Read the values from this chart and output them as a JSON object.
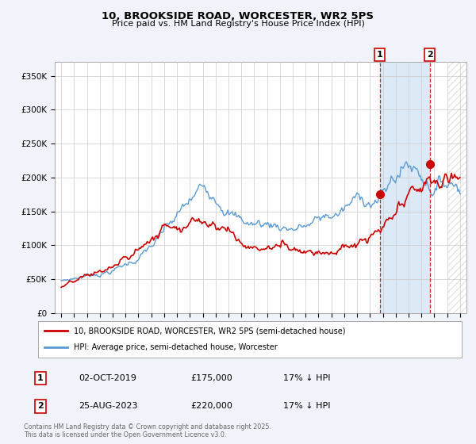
{
  "title": "10, BROOKSIDE ROAD, WORCESTER, WR2 5PS",
  "subtitle": "Price paid vs. HM Land Registry's House Price Index (HPI)",
  "ylim": [
    0,
    370000
  ],
  "yticks": [
    0,
    50000,
    100000,
    150000,
    200000,
    250000,
    300000,
    350000
  ],
  "ytick_labels": [
    "£0",
    "£50K",
    "£100K",
    "£150K",
    "£200K",
    "£250K",
    "£300K",
    "£350K"
  ],
  "hpi_color": "#5b9bd5",
  "price_color": "#cc0000",
  "annotation1_date": "02-OCT-2019",
  "annotation1_price": "£175,000",
  "annotation1_hpi": "17% ↓ HPI",
  "annotation2_date": "25-AUG-2023",
  "annotation2_price": "£220,000",
  "annotation2_hpi": "17% ↓ HPI",
  "legend1": "10, BROOKSIDE ROAD, WORCESTER, WR2 5PS (semi-detached house)",
  "legend2": "HPI: Average price, semi-detached house, Worcester",
  "footer": "Contains HM Land Registry data © Crown copyright and database right 2025.\nThis data is licensed under the Open Government Licence v3.0.",
  "sale1_x": 2019.75,
  "sale1_y": 175000,
  "sale2_x": 2023.65,
  "sale2_y": 220000,
  "background_color": "#f0f4fa",
  "plot_bg_color": "#ffffff",
  "grid_color": "#cccccc",
  "shade_color": "#dce9f7",
  "hatch_color": "#cccccc",
  "xmin": 1994.5,
  "xmax": 2026.5,
  "future_start": 2025.0
}
